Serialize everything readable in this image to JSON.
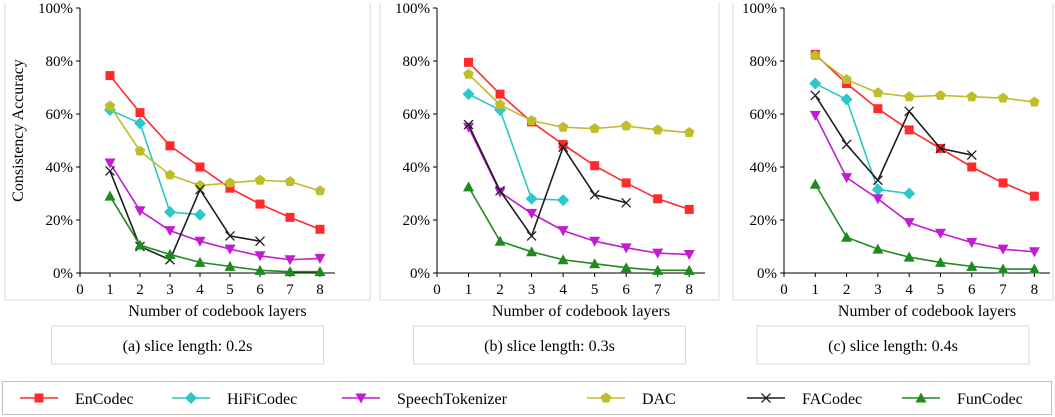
{
  "series_styles": [
    {
      "name": "EnCodec",
      "color": "#ff2a2a",
      "marker": "square"
    },
    {
      "name": "HiFiCodec",
      "color": "#2ac8c8",
      "marker": "diamond"
    },
    {
      "name": "SpeechTokenizer",
      "color": "#c21bd1",
      "marker": "triangle-down"
    },
    {
      "name": "DAC",
      "color": "#bfbd2a",
      "marker": "pentagon"
    },
    {
      "name": "FACodec",
      "color": "#1e1e1e",
      "marker": "x"
    },
    {
      "name": "FunCodec",
      "color": "#1f8b1f",
      "marker": "triangle-up"
    }
  ],
  "chart_data": [
    {
      "type": "line",
      "caption": "(a) slice length: 0.2s",
      "xlabel": "Number of codebook layers",
      "ylabel": "Consistency Accuracy",
      "xlim": [
        0,
        8.5
      ],
      "ylim": [
        0,
        100
      ],
      "xticks": [
        0,
        1,
        2,
        3,
        4,
        5,
        6,
        7,
        8
      ],
      "yticks": [
        0,
        20,
        40,
        60,
        80,
        100
      ],
      "ytick_labels": [
        "0%",
        "20%",
        "40%",
        "60%",
        "80%",
        "100%"
      ],
      "grid": false,
      "series": [
        {
          "name": "EnCodec",
          "x": [
            1,
            2,
            3,
            4,
            5,
            6,
            7,
            8
          ],
          "values": [
            74.5,
            60.5,
            48,
            40,
            32,
            26,
            21,
            16.5
          ]
        },
        {
          "name": "HiFiCodec",
          "x": [
            1,
            2,
            3,
            4
          ],
          "values": [
            61.5,
            56.5,
            23,
            22
          ]
        },
        {
          "name": "SpeechTokenizer",
          "x": [
            1,
            2,
            3,
            4,
            5,
            6,
            7,
            8
          ],
          "values": [
            41.5,
            23.5,
            16,
            12,
            9,
            6.5,
            5,
            5.5
          ]
        },
        {
          "name": "DAC",
          "x": [
            1,
            2,
            3,
            4,
            5,
            6,
            7,
            8
          ],
          "values": [
            63,
            46,
            37,
            33,
            34,
            35,
            34.5,
            31
          ]
        },
        {
          "name": "FACodec",
          "x": [
            1,
            2,
            3,
            4,
            5,
            6
          ],
          "values": [
            38.5,
            10,
            5,
            31.5,
            14,
            12
          ]
        },
        {
          "name": "FunCodec",
          "x": [
            1,
            2,
            3,
            4,
            5,
            6,
            7,
            8
          ],
          "values": [
            29,
            10.5,
            7,
            4,
            2.5,
            1,
            0.5,
            0.5
          ]
        }
      ]
    },
    {
      "type": "line",
      "caption": "(b) slice length: 0.3s",
      "xlabel": "Number of codebook layers",
      "ylabel": "",
      "xlim": [
        0,
        8.5
      ],
      "ylim": [
        0,
        100
      ],
      "xticks": [
        0,
        1,
        2,
        3,
        4,
        5,
        6,
        7,
        8
      ],
      "yticks": [
        0,
        20,
        40,
        60,
        80,
        100
      ],
      "ytick_labels": [
        "0%",
        "20%",
        "40%",
        "60%",
        "80%",
        "100%"
      ],
      "grid": false,
      "series": [
        {
          "name": "EnCodec",
          "x": [
            1,
            2,
            3,
            4,
            5,
            6,
            7,
            8
          ],
          "values": [
            79.5,
            67.5,
            57,
            48.5,
            40.5,
            34,
            28,
            24
          ]
        },
        {
          "name": "HiFiCodec",
          "x": [
            1,
            2,
            3,
            4
          ],
          "values": [
            67.5,
            61.5,
            28,
            27.5
          ]
        },
        {
          "name": "SpeechTokenizer",
          "x": [
            1,
            2,
            3,
            4,
            5,
            6,
            7,
            8
          ],
          "values": [
            55,
            30.5,
            22.5,
            16,
            12,
            9.5,
            7.5,
            7
          ]
        },
        {
          "name": "DAC",
          "x": [
            1,
            2,
            3,
            4,
            5,
            6,
            7,
            8
          ],
          "values": [
            75,
            63.5,
            57.5,
            55,
            54.5,
            55.5,
            54,
            53
          ]
        },
        {
          "name": "FACodec",
          "x": [
            1,
            2,
            3,
            4,
            5,
            6
          ],
          "values": [
            56,
            31,
            14,
            47.5,
            29.5,
            26.5
          ]
        },
        {
          "name": "FunCodec",
          "x": [
            1,
            2,
            3,
            4,
            5,
            6,
            7,
            8
          ],
          "values": [
            32.5,
            12,
            8,
            5,
            3.5,
            2,
            1,
            1
          ]
        }
      ]
    },
    {
      "type": "line",
      "caption": "(c) slice length: 0.4s",
      "xlabel": "Number of codebook layers",
      "ylabel": "",
      "xlim": [
        0,
        8.5
      ],
      "ylim": [
        0,
        100
      ],
      "xticks": [
        0,
        1,
        2,
        3,
        4,
        5,
        6,
        7,
        8
      ],
      "yticks": [
        0,
        20,
        40,
        60,
        80,
        100
      ],
      "ytick_labels": [
        "0%",
        "20%",
        "40%",
        "60%",
        "80%",
        "100%"
      ],
      "grid": false,
      "series": [
        {
          "name": "EnCodec",
          "x": [
            1,
            2,
            3,
            4,
            5,
            6,
            7,
            8
          ],
          "values": [
            82.5,
            71.5,
            62,
            54,
            47,
            40,
            34,
            29
          ]
        },
        {
          "name": "HiFiCodec",
          "x": [
            1,
            2,
            3,
            4
          ],
          "values": [
            71.5,
            65.5,
            31.5,
            30
          ]
        },
        {
          "name": "SpeechTokenizer",
          "x": [
            1,
            2,
            3,
            4,
            5,
            6,
            7,
            8
          ],
          "values": [
            59.5,
            36,
            28,
            19,
            15,
            11.5,
            9,
            8
          ]
        },
        {
          "name": "DAC",
          "x": [
            1,
            2,
            3,
            4,
            5,
            6,
            7,
            8
          ],
          "values": [
            82,
            73,
            68,
            66.5,
            67,
            66.5,
            66,
            64.5
          ]
        },
        {
          "name": "FACodec",
          "x": [
            1,
            2,
            3,
            4,
            5,
            6
          ],
          "values": [
            67,
            48.5,
            35,
            61,
            47,
            44.5
          ]
        },
        {
          "name": "FunCodec",
          "x": [
            1,
            2,
            3,
            4,
            5,
            6,
            7,
            8
          ],
          "values": [
            33.5,
            13.5,
            9,
            6,
            4,
            2.5,
            1.5,
            1.5
          ]
        }
      ]
    }
  ],
  "legend": {
    "placement": "bottom",
    "entries": [
      "EnCodec",
      "HiFiCodec",
      "SpeechTokenizer",
      "DAC",
      "FACodec",
      "FunCodec"
    ]
  }
}
